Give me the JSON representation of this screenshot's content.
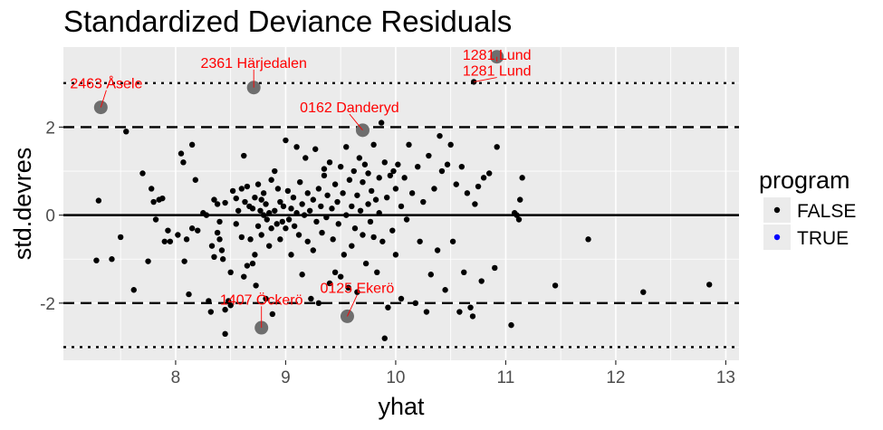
{
  "chart_data": {
    "type": "scatter",
    "title": "Standardized Deviance Residuals",
    "xlabel": "yhat",
    "ylabel": "std.devres",
    "xlim": [
      6.98,
      13.12
    ],
    "ylim": [
      -3.3,
      3.82
    ],
    "x_ticks": [
      8,
      9,
      10,
      11,
      12,
      13
    ],
    "y_ticks": [
      -2,
      0,
      2
    ],
    "x_tick_labels": [
      "8",
      "9",
      "10",
      "11",
      "12",
      "13"
    ],
    "y_tick_labels": [
      "-2",
      "0",
      "2"
    ],
    "grid": true,
    "background_color": "#ebebeb",
    "point_color": "#000000",
    "highlight_color": "#6e6e6e",
    "annotation_color": "#ff0000",
    "reference_lines": [
      {
        "y": 0,
        "style": "solid"
      },
      {
        "y": 2,
        "style": "dashed"
      },
      {
        "y": -2,
        "style": "dashed"
      },
      {
        "y": 3,
        "style": "dotted"
      },
      {
        "y": -3,
        "style": "dotted"
      }
    ],
    "legend": {
      "title": "program",
      "position": "right",
      "entries": [
        {
          "label": "FALSE",
          "color": "#000000"
        },
        {
          "label": "TRUE",
          "color": "#0000ff"
        }
      ]
    },
    "highlighted": [
      {
        "x": 7.32,
        "y": 2.45,
        "label": "2463 Åsele"
      },
      {
        "x": 8.71,
        "y": 2.9,
        "label": "2361 Härjedalen"
      },
      {
        "x": 10.92,
        "y": 3.6,
        "label": "1281 Lund"
      },
      {
        "x": 9.7,
        "y": 1.93,
        "label": "0162 Danderyd"
      },
      {
        "x": 8.78,
        "y": -2.56,
        "label": "1407 Öckerö"
      },
      {
        "x": 9.56,
        "y": -2.3,
        "label": "0125 Ekerö"
      }
    ],
    "annotations": [
      {
        "text": "2463 Åsele",
        "x": 7.32,
        "y": 2.45,
        "label_x": 7.37,
        "label_y": 2.88
      },
      {
        "text": "2361 Härjedalen",
        "x": 8.71,
        "y": 2.9,
        "label_x": 8.71,
        "label_y": 3.35
      },
      {
        "text": "1281 Lund",
        "x": 10.92,
        "y": 3.6,
        "label_x": 10.92,
        "label_y": 3.53
      },
      {
        "text": "1281 Lund",
        "x": 10.71,
        "y": 3.03,
        "label_x": 10.92,
        "label_y": 3.17
      },
      {
        "text": "0162 Danderyd",
        "x": 9.7,
        "y": 1.93,
        "label_x": 9.58,
        "label_y": 2.34
      },
      {
        "text": "1407 Öckerö",
        "x": 8.78,
        "y": -2.56,
        "label_x": 8.78,
        "label_y": -2.03
      },
      {
        "text": "0125 Ekerö",
        "x": 9.56,
        "y": -2.3,
        "label_x": 9.65,
        "label_y": -1.77
      }
    ],
    "points": [
      [
        7.28,
        -1.03
      ],
      [
        7.3,
        0.33
      ],
      [
        7.42,
        -1.0
      ],
      [
        7.5,
        -0.5
      ],
      [
        7.55,
        1.9
      ],
      [
        7.62,
        -1.7
      ],
      [
        7.7,
        0.95
      ],
      [
        7.75,
        -1.05
      ],
      [
        7.78,
        0.6
      ],
      [
        7.8,
        0.3
      ],
      [
        7.82,
        -0.1
      ],
      [
        7.85,
        0.35
      ],
      [
        7.88,
        0.38
      ],
      [
        7.9,
        -0.6
      ],
      [
        7.93,
        -0.35
      ],
      [
        7.95,
        -0.6
      ],
      [
        8.02,
        -0.45
      ],
      [
        8.05,
        1.4
      ],
      [
        8.07,
        1.2
      ],
      [
        8.08,
        -1.05
      ],
      [
        8.1,
        -0.55
      ],
      [
        8.12,
        -1.8
      ],
      [
        8.15,
        -0.3
      ],
      [
        8.15,
        1.6
      ],
      [
        8.18,
        0.8
      ],
      [
        8.2,
        -0.35
      ],
      [
        8.25,
        0.05
      ],
      [
        8.28,
        0.0
      ],
      [
        8.3,
        -1.95
      ],
      [
        8.32,
        -2.2
      ],
      [
        8.33,
        -0.7
      ],
      [
        8.35,
        0.35
      ],
      [
        8.35,
        -0.95
      ],
      [
        8.38,
        0.25
      ],
      [
        8.38,
        -0.4
      ],
      [
        8.4,
        -0.15
      ],
      [
        8.4,
        -0.55
      ],
      [
        8.42,
        -0.8
      ],
      [
        8.43,
        -1.0
      ],
      [
        8.45,
        -2.15
      ],
      [
        8.45,
        -2.7
      ],
      [
        8.45,
        0.28
      ],
      [
        8.48,
        -1.95
      ],
      [
        8.5,
        -1.3
      ],
      [
        8.5,
        -2.05
      ],
      [
        8.52,
        0.55
      ],
      [
        8.55,
        0.38
      ],
      [
        8.55,
        -0.2
      ],
      [
        8.57,
        0.1
      ],
      [
        8.6,
        0.6
      ],
      [
        8.6,
        -0.5
      ],
      [
        8.62,
        -1.4
      ],
      [
        8.62,
        1.35
      ],
      [
        8.63,
        0.3
      ],
      [
        8.65,
        -1.15
      ],
      [
        8.65,
        0.65
      ],
      [
        8.67,
        0.2
      ],
      [
        8.68,
        -0.55
      ],
      [
        8.7,
        -1.1
      ],
      [
        8.7,
        0.15
      ],
      [
        8.72,
        -0.9
      ],
      [
        8.72,
        0.4
      ],
      [
        8.73,
        -1.6
      ],
      [
        8.75,
        0.7
      ],
      [
        8.75,
        -0.25
      ],
      [
        8.77,
        0.1
      ],
      [
        8.78,
        -0.45
      ],
      [
        8.78,
        0.35
      ],
      [
        8.8,
        0.0
      ],
      [
        8.8,
        0.5
      ],
      [
        8.82,
        -1.9
      ],
      [
        8.82,
        0.25
      ],
      [
        8.83,
        -0.1
      ],
      [
        8.85,
        0.05
      ],
      [
        8.85,
        -0.7
      ],
      [
        8.87,
        0.8
      ],
      [
        8.87,
        -0.3
      ],
      [
        8.88,
        -2.25
      ],
      [
        8.9,
        0.1
      ],
      [
        8.9,
        1.0
      ],
      [
        8.92,
        -0.2
      ],
      [
        8.93,
        0.6
      ],
      [
        8.95,
        0.3
      ],
      [
        8.95,
        -0.55
      ],
      [
        8.97,
        -0.15
      ],
      [
        8.98,
        0.2
      ],
      [
        9.0,
        1.7
      ],
      [
        9.0,
        -0.3
      ],
      [
        9.02,
        0.55
      ],
      [
        9.03,
        -0.1
      ],
      [
        9.05,
        0.15
      ],
      [
        9.05,
        -0.9
      ],
      [
        9.07,
        0.4
      ],
      [
        9.08,
        -0.25
      ],
      [
        9.1,
        1.55
      ],
      [
        9.1,
        0.05
      ],
      [
        9.12,
        -0.45
      ],
      [
        9.13,
        0.75
      ],
      [
        9.15,
        0.25
      ],
      [
        9.15,
        -1.35
      ],
      [
        9.17,
        0.0
      ],
      [
        9.18,
        1.3
      ],
      [
        9.2,
        0.5
      ],
      [
        9.2,
        -0.6
      ],
      [
        9.22,
        0.1
      ],
      [
        9.23,
        -1.9
      ],
      [
        9.25,
        0.35
      ],
      [
        9.25,
        -0.8
      ],
      [
        9.27,
        1.5
      ],
      [
        9.28,
        -0.15
      ],
      [
        9.3,
        0.6
      ],
      [
        9.3,
        -2.0
      ],
      [
        9.32,
        0.2
      ],
      [
        9.33,
        -0.4
      ],
      [
        9.35,
        1.05
      ],
      [
        9.35,
        0.9
      ],
      [
        9.37,
        -0.05
      ],
      [
        9.38,
        0.45
      ],
      [
        9.4,
        -1.55
      ],
      [
        9.4,
        1.2
      ],
      [
        9.42,
        0.15
      ],
      [
        9.43,
        -0.55
      ],
      [
        9.45,
        0.7
      ],
      [
        9.45,
        -1.3
      ],
      [
        9.47,
        0.3
      ],
      [
        9.48,
        -0.2
      ],
      [
        9.5,
        1.1
      ],
      [
        9.5,
        -1.4
      ],
      [
        9.52,
        0.5
      ],
      [
        9.53,
        -0.9
      ],
      [
        9.55,
        0.0
      ],
      [
        9.55,
        1.55
      ],
      [
        9.57,
        -1.65
      ],
      [
        9.58,
        0.8
      ],
      [
        9.6,
        0.2
      ],
      [
        9.6,
        -0.7
      ],
      [
        9.62,
        1.0
      ],
      [
        9.63,
        -0.3
      ],
      [
        9.65,
        0.45
      ],
      [
        9.65,
        -1.75
      ],
      [
        9.67,
        1.3
      ],
      [
        9.68,
        0.1
      ],
      [
        9.7,
        0.75
      ],
      [
        9.7,
        -0.45
      ],
      [
        9.72,
        1.15
      ],
      [
        9.73,
        -1.1
      ],
      [
        9.75,
        0.25
      ],
      [
        9.75,
        0.95
      ],
      [
        9.77,
        -0.15
      ],
      [
        9.78,
        0.55
      ],
      [
        9.8,
        1.6
      ],
      [
        9.8,
        -0.5
      ],
      [
        9.82,
        0.35
      ],
      [
        9.83,
        -1.3
      ],
      [
        9.85,
        0.85
      ],
      [
        9.85,
        0.05
      ],
      [
        9.87,
        2.1
      ],
      [
        9.88,
        -0.6
      ],
      [
        9.9,
        1.2
      ],
      [
        9.9,
        -2.8
      ],
      [
        9.92,
        0.4
      ],
      [
        9.93,
        -2.1
      ],
      [
        9.95,
        0.9
      ],
      [
        9.97,
        -0.35
      ],
      [
        9.98,
        1.0
      ],
      [
        10.0,
        0.6
      ],
      [
        10.0,
        -0.9
      ],
      [
        10.02,
        1.15
      ],
      [
        10.05,
        0.2
      ],
      [
        10.05,
        -1.9
      ],
      [
        10.08,
        0.85
      ],
      [
        10.1,
        -0.1
      ],
      [
        10.12,
        1.6
      ],
      [
        10.15,
        0.5
      ],
      [
        10.18,
        -2.0
      ],
      [
        10.2,
        1.1
      ],
      [
        10.22,
        -0.6
      ],
      [
        10.25,
        0.3
      ],
      [
        10.28,
        -2.2
      ],
      [
        10.3,
        1.35
      ],
      [
        10.32,
        -1.35
      ],
      [
        10.35,
        0.6
      ],
      [
        10.38,
        -0.8
      ],
      [
        10.4,
        1.8
      ],
      [
        10.42,
        1.0
      ],
      [
        10.45,
        -1.7
      ],
      [
        10.47,
        1.15
      ],
      [
        10.5,
        1.6
      ],
      [
        10.52,
        -0.6
      ],
      [
        10.55,
        0.7
      ],
      [
        10.58,
        -2.2
      ],
      [
        10.6,
        1.1
      ],
      [
        10.62,
        -1.3
      ],
      [
        10.65,
        0.5
      ],
      [
        10.68,
        -2.1
      ],
      [
        10.7,
        -2.3
      ],
      [
        10.72,
        0.25
      ],
      [
        10.75,
        0.65
      ],
      [
        10.78,
        -1.5
      ],
      [
        10.8,
        0.85
      ],
      [
        10.85,
        0.95
      ],
      [
        10.9,
        -1.2
      ],
      [
        10.92,
        1.55
      ],
      [
        11.05,
        -2.5
      ],
      [
        11.08,
        0.05
      ],
      [
        11.1,
        0.0
      ],
      [
        11.12,
        -0.1
      ],
      [
        11.13,
        0.35
      ],
      [
        11.15,
        0.85
      ],
      [
        11.45,
        -1.6
      ],
      [
        11.75,
        -0.55
      ],
      [
        12.25,
        -1.75
      ],
      [
        12.85,
        -1.58
      ],
      [
        7.32,
        2.45
      ],
      [
        8.71,
        2.9
      ],
      [
        10.92,
        3.6
      ],
      [
        10.71,
        3.03
      ],
      [
        9.7,
        1.93
      ],
      [
        8.78,
        -2.56
      ],
      [
        9.56,
        -2.3
      ]
    ]
  }
}
